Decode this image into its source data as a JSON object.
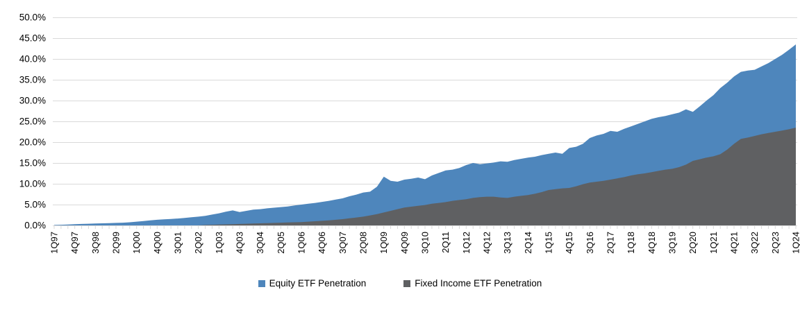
{
  "chart_data": {
    "type": "area",
    "title": "",
    "overlap_mode": "overlaid-not-stacked; fixed income series drawn in front of equity series",
    "y_axis": {
      "min": 0,
      "max": 50,
      "step": 5,
      "tick_labels": [
        "0.0%",
        "5.0%",
        "10.0%",
        "15.0%",
        "20.0%",
        "25.0%",
        "30.0%",
        "35.0%",
        "40.0%",
        "45.0%",
        "50.0%"
      ]
    },
    "x_axis": {
      "start": "1Q97",
      "end": "1Q24",
      "frequency": "quarterly",
      "label_every_n_quarters": 3,
      "tick_labels": [
        "1Q97",
        "4Q97",
        "3Q98",
        "2Q99",
        "1Q00",
        "4Q00",
        "3Q01",
        "2Q02",
        "1Q03",
        "4Q03",
        "3Q04",
        "2Q05",
        "1Q06",
        "4Q06",
        "3Q07",
        "2Q08",
        "1Q09",
        "4Q09",
        "3Q10",
        "2Q11",
        "1Q12",
        "4Q12",
        "3Q13",
        "2Q14",
        "1Q15",
        "4Q15",
        "3Q16",
        "2Q17",
        "1Q18",
        "4Q18",
        "3Q19",
        "2Q20",
        "1Q21",
        "4Q21",
        "3Q22",
        "2Q23",
        "1Q24"
      ]
    },
    "series": [
      {
        "name": "Equity ETF Penetration",
        "color": "#4E86BC",
        "values_pct": [
          0.1,
          0.15,
          0.2,
          0.3,
          0.35,
          0.4,
          0.45,
          0.5,
          0.55,
          0.6,
          0.65,
          0.75,
          0.9,
          1.05,
          1.2,
          1.35,
          1.45,
          1.55,
          1.65,
          1.8,
          1.95,
          2.1,
          2.3,
          2.6,
          2.9,
          3.3,
          3.6,
          3.2,
          3.5,
          3.8,
          3.9,
          4.1,
          4.25,
          4.4,
          4.55,
          4.8,
          5.0,
          5.2,
          5.4,
          5.65,
          5.9,
          6.2,
          6.5,
          7.0,
          7.4,
          7.9,
          8.1,
          9.3,
          11.7,
          10.7,
          10.5,
          11.0,
          11.2,
          11.5,
          11.1,
          12.0,
          12.6,
          13.2,
          13.4,
          13.8,
          14.5,
          15.0,
          14.7,
          14.9,
          15.1,
          15.4,
          15.3,
          15.7,
          16.0,
          16.3,
          16.5,
          16.9,
          17.2,
          17.5,
          17.2,
          18.6,
          18.9,
          19.6,
          21.0,
          21.6,
          22.0,
          22.7,
          22.5,
          23.2,
          23.8,
          24.4,
          25.0,
          25.6,
          26.0,
          26.3,
          26.7,
          27.1,
          27.9,
          27.3,
          28.6,
          30.0,
          31.3,
          33.0,
          34.3,
          35.8,
          36.9,
          37.2,
          37.4,
          38.2,
          39.0,
          40.0,
          41.0,
          42.2,
          43.5
        ]
      },
      {
        "name": "Fixed Income ETF Penetration",
        "color": "#5F6062",
        "values_pct": [
          0,
          0,
          0,
          0,
          0,
          0,
          0,
          0,
          0,
          0,
          0,
          0,
          0,
          0,
          0,
          0,
          0,
          0,
          0,
          0,
          0,
          0,
          0.1,
          0.15,
          0.2,
          0.25,
          0.3,
          0.35,
          0.4,
          0.45,
          0.5,
          0.55,
          0.6,
          0.65,
          0.7,
          0.75,
          0.8,
          0.9,
          1.0,
          1.1,
          1.2,
          1.35,
          1.5,
          1.7,
          1.9,
          2.1,
          2.4,
          2.7,
          3.1,
          3.5,
          3.9,
          4.3,
          4.5,
          4.7,
          4.9,
          5.2,
          5.4,
          5.6,
          5.9,
          6.1,
          6.3,
          6.6,
          6.8,
          6.9,
          6.9,
          6.7,
          6.6,
          6.9,
          7.1,
          7.3,
          7.6,
          8.0,
          8.5,
          8.7,
          8.9,
          9.0,
          9.4,
          9.9,
          10.3,
          10.5,
          10.7,
          11.0,
          11.3,
          11.6,
          12.0,
          12.3,
          12.5,
          12.8,
          13.1,
          13.4,
          13.6,
          14.0,
          14.6,
          15.5,
          15.9,
          16.3,
          16.6,
          17.1,
          18.2,
          19.6,
          20.8,
          21.1,
          21.5,
          21.9,
          22.2,
          22.5,
          22.8,
          23.1,
          23.5
        ]
      }
    ],
    "legend": {
      "position": "bottom-center",
      "items": [
        "Equity ETF Penetration",
        "Fixed Income ETF Penetration"
      ]
    },
    "grid": {
      "horizontal": true,
      "vertical": false,
      "color": "#D9D9D9"
    },
    "text_color": "#000000"
  }
}
